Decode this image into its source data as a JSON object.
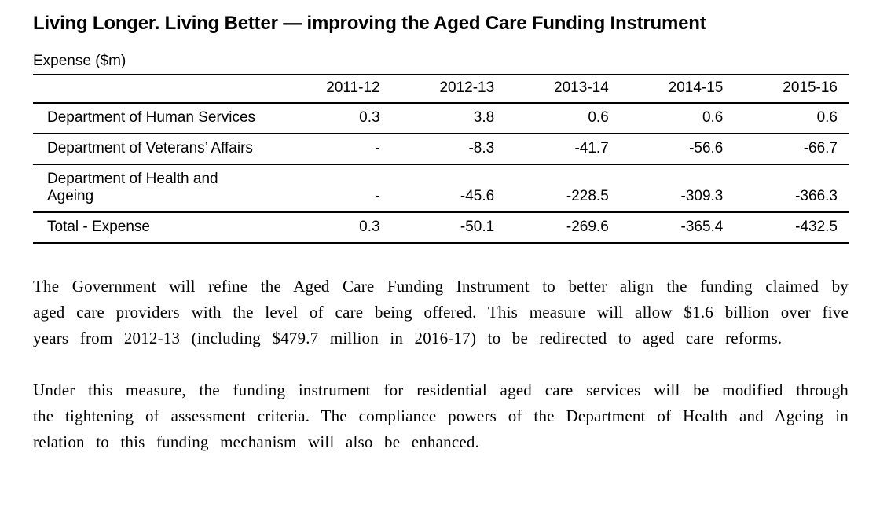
{
  "page": {
    "title": "Living Longer. Living Better — improving the Aged Care Funding Instrument",
    "table_label": "Expense ($m)"
  },
  "table": {
    "columns": [
      "2011-12",
      "2012-13",
      "2013-14",
      "2014-15",
      "2015-16"
    ],
    "rows": [
      {
        "label": "Department of Human Services",
        "values": [
          "0.3",
          "3.8",
          "0.6",
          "0.6",
          "0.6"
        ]
      },
      {
        "label": "Department of Veterans’ Affairs",
        "values": [
          "-",
          "-8.3",
          "-41.7",
          "-56.6",
          "-66.7"
        ]
      },
      {
        "label": "Department of Health and\nAgeing",
        "values": [
          "-",
          "-45.6",
          "-228.5",
          "-309.3",
          "-366.3"
        ]
      },
      {
        "label": "Total - Expense",
        "values": [
          "0.3",
          "-50.1",
          "-269.6",
          "-365.4",
          "-432.5"
        ]
      }
    ]
  },
  "paragraphs": [
    "The Government will refine the Aged Care Funding Instrument to better align the funding claimed by aged care providers with the level of care being offered. This measure will allow $1.6 billion over five years from 2012-13 (including $479.7 million in 2016-17) to be redirected to aged care reforms.",
    "Under this measure, the funding instrument for residential aged care services will be modified through the tightening of assessment criteria. The compliance powers of the Department of Health and Ageing in relation to this funding mechanism will also be enhanced."
  ]
}
